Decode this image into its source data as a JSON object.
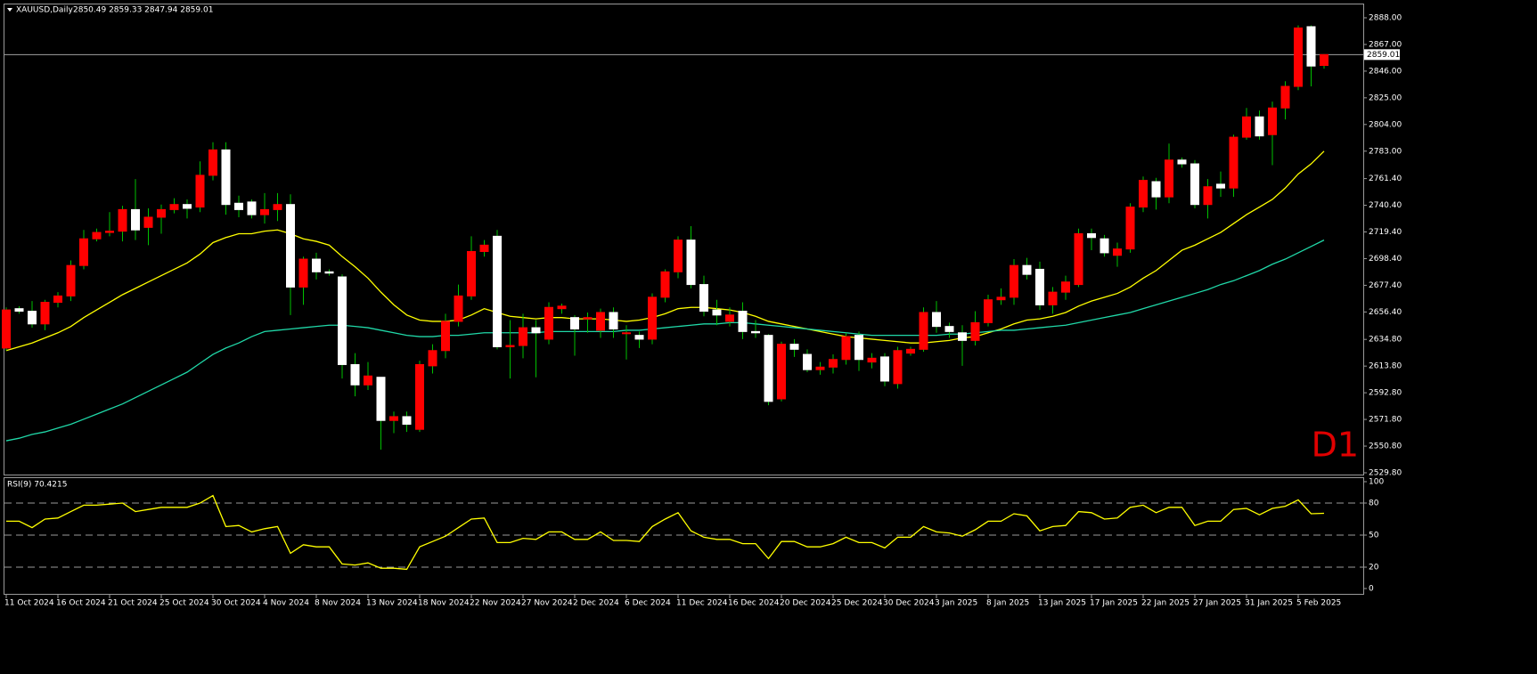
{
  "chart_data": [
    {
      "type": "candlestick",
      "title": "XAUUSD,Daily",
      "subtitle": "2850.49 2859.33 2847.94 2859.01",
      "watermark": "D1",
      "categories": [
        "11 Oct 2024",
        null,
        null,
        null,
        "16 Oct 2024",
        null,
        null,
        null,
        "21 Oct 2024",
        null,
        null,
        null,
        "25 Oct 2024",
        null,
        null,
        null,
        "30 Oct 2024",
        null,
        null,
        null,
        "4 Nov 2024",
        null,
        null,
        null,
        "8 Nov 2024",
        null,
        null,
        null,
        "13 Nov 2024",
        null,
        null,
        null,
        "18 Nov 2024",
        null,
        null,
        null,
        "22 Nov 2024",
        null,
        null,
        null,
        "27 Nov 2024",
        null,
        null,
        null,
        "2 Dec 2024",
        null,
        null,
        null,
        "6 Dec 2024",
        null,
        null,
        null,
        "11 Dec 2024",
        null,
        null,
        null,
        "16 Dec 2024",
        null,
        null,
        null,
        "20 Dec 2024",
        null,
        null,
        null,
        "25 Dec 2024",
        null,
        null,
        null,
        "30 Dec 2024",
        null,
        null,
        null,
        "3 Jan 2025",
        null,
        null,
        null,
        "8 Jan 2025",
        null,
        null,
        null,
        "13 Jan 2025",
        null,
        null,
        null,
        "17 Jan 2025",
        null,
        null,
        null,
        "22 Jan 2025",
        null,
        null,
        null,
        "27 Jan 2025",
        null,
        null,
        null,
        "31 Jan 2025",
        null,
        null,
        null,
        "5 Feb 2025",
        null,
        null
      ],
      "open": [
        2628,
        2659,
        2657,
        2647,
        2664,
        2669,
        2693,
        2714,
        2719,
        2720,
        2737,
        2723,
        2731,
        2737,
        2741,
        2739,
        2764,
        2784,
        2742,
        2743,
        2733,
        2737,
        2741,
        2676,
        2698,
        2688,
        2684,
        2615,
        2599,
        2605,
        2571,
        2574,
        2564,
        2614,
        2626,
        2649,
        2669,
        2704,
        2716,
        2629,
        2630,
        2644,
        2635,
        2659,
        2652,
        2651,
        2642,
        2656,
        2640,
        2638,
        2635,
        2668,
        2688,
        2713,
        2678,
        2658,
        2649,
        2657,
        2641,
        2638,
        2588,
        2631,
        2623,
        2611,
        2613,
        2619,
        2638,
        2617,
        2621,
        2600,
        2624,
        2627,
        2656,
        2645,
        2640,
        2634,
        2648,
        2666,
        2668,
        2693,
        2690,
        2662,
        2672,
        2678,
        2718,
        2714,
        2701,
        2706,
        2739,
        2759,
        2747,
        2776,
        2773,
        2741,
        2757,
        2754,
        2794,
        2810,
        2796,
        2817,
        2834,
        2881,
        2850.49
      ],
      "high": [
        2660,
        2661,
        2665,
        2666,
        2672,
        2697,
        2721,
        2722,
        2735,
        2740,
        2761,
        2738,
        2741,
        2746,
        2745,
        2775,
        2790,
        2790,
        2748,
        2745,
        2750,
        2750,
        2749,
        2700,
        2703,
        2690,
        2686,
        2624,
        2617,
        2605,
        2578,
        2578,
        2618,
        2631,
        2655,
        2678,
        2716,
        2713,
        2721,
        2650,
        2655,
        2650,
        2664,
        2663,
        2654,
        2656,
        2659,
        2660,
        2646,
        2641,
        2671,
        2690,
        2716,
        2724,
        2685,
        2666,
        2660,
        2664,
        2650,
        2639,
        2633,
        2635,
        2627,
        2617,
        2623,
        2640,
        2641,
        2624,
        2624,
        2629,
        2629,
        2660,
        2665,
        2648,
        2646,
        2657,
        2670,
        2675,
        2698,
        2699,
        2696,
        2676,
        2685,
        2722,
        2722,
        2717,
        2711,
        2742,
        2763,
        2762,
        2789,
        2778,
        2776,
        2761,
        2767,
        2796,
        2817,
        2815,
        2822,
        2838,
        2882,
        2882,
        2859.33
      ],
      "low": [
        2626,
        2655,
        2644,
        2642,
        2660,
        2665,
        2690,
        2712,
        2716,
        2712,
        2713,
        2709,
        2718,
        2734,
        2730,
        2735,
        2760,
        2733,
        2731,
        2730,
        2726,
        2728,
        2654,
        2662,
        2682,
        2685,
        2604,
        2590,
        2595,
        2548,
        2561,
        2562,
        2562,
        2608,
        2620,
        2645,
        2666,
        2700,
        2627,
        2604,
        2620,
        2605,
        2631,
        2655,
        2622,
        2640,
        2636,
        2636,
        2619,
        2628,
        2631,
        2664,
        2683,
        2675,
        2653,
        2646,
        2645,
        2635,
        2636,
        2583,
        2586,
        2621,
        2609,
        2607,
        2608,
        2615,
        2610,
        2612,
        2598,
        2596,
        2622,
        2625,
        2640,
        2636,
        2614,
        2630,
        2645,
        2662,
        2662,
        2682,
        2658,
        2655,
        2666,
        2676,
        2705,
        2700,
        2692,
        2703,
        2735,
        2737,
        2742,
        2770,
        2738,
        2730,
        2747,
        2747,
        2792,
        2792,
        2772,
        2808,
        2831,
        2834,
        2847.94
      ],
      "close": [
        2658,
        2657,
        2647,
        2664,
        2669,
        2693,
        2714,
        2719,
        2720,
        2737,
        2721,
        2731,
        2737,
        2741,
        2738,
        2764,
        2784,
        2741,
        2737,
        2733,
        2737,
        2741,
        2676,
        2698,
        2688,
        2687,
        2615,
        2599,
        2606,
        2571,
        2574,
        2568,
        2615,
        2626,
        2649,
        2669,
        2704,
        2709,
        2629,
        2630,
        2644,
        2640,
        2660,
        2661,
        2643,
        2652,
        2656,
        2643,
        2640,
        2635,
        2668,
        2688,
        2713,
        2678,
        2657,
        2654,
        2654,
        2641,
        2640,
        2586,
        2631,
        2627,
        2611,
        2613,
        2619,
        2637,
        2619,
        2620,
        2602,
        2626,
        2627,
        2656,
        2645,
        2641,
        2634,
        2648,
        2666,
        2668,
        2693,
        2686,
        2662,
        2672,
        2680,
        2718,
        2715,
        2703,
        2706,
        2739,
        2760,
        2747,
        2776,
        2773,
        2741,
        2755,
        2754,
        2794,
        2810,
        2795,
        2817,
        2834,
        2880,
        2850,
        2859.01
      ],
      "up_color": "#ff0000",
      "down_color": "#ffffff",
      "wick_color": "#00c000",
      "series": [
        {
          "color": "#ffff00",
          "values": [
            2626,
            2629,
            2632,
            2636,
            2640,
            2645,
            2652,
            2658,
            2664,
            2670,
            2675,
            2680,
            2685,
            2690,
            2695,
            2702,
            2711,
            2715,
            2718,
            2718,
            2720,
            2721,
            2718,
            2714,
            2712,
            2709,
            2700,
            2692,
            2683,
            2672,
            2662,
            2654,
            2650,
            2649,
            2649,
            2650,
            2654,
            2659,
            2656,
            2653,
            2652,
            2651,
            2652,
            2652,
            2651,
            2651,
            2651,
            2650,
            2649,
            2650,
            2652,
            2655,
            2659,
            2660,
            2660,
            2659,
            2658,
            2656,
            2653,
            2649,
            2647,
            2645,
            2643,
            2641,
            2639,
            2637,
            2636,
            2635,
            2634,
            2633,
            2632,
            2632,
            2633,
            2634,
            2636,
            2637,
            2640,
            2643,
            2647,
            2650,
            2651,
            2653,
            2656,
            2661,
            2665,
            2668,
            2671,
            2676,
            2683,
            2689,
            2697,
            2705,
            2709,
            2714,
            2719,
            2726,
            2733,
            2739,
            2745,
            2754,
            2765,
            2773,
            2783
          ]
        },
        {
          "color": "#20d8a8",
          "values": [
            2555,
            2557,
            2560,
            2562,
            2565,
            2568,
            2572,
            2576,
            2580,
            2584,
            2589,
            2594,
            2599,
            2604,
            2609,
            2616,
            2623,
            2628,
            2632,
            2637,
            2641,
            2642,
            2643,
            2644,
            2645,
            2646,
            2646,
            2645,
            2644,
            2642,
            2640,
            2638,
            2637,
            2637,
            2638,
            2638,
            2639,
            2640,
            2640,
            2640,
            2640,
            2640,
            2641,
            2641,
            2641,
            2641,
            2641,
            2641,
            2642,
            2642,
            2643,
            2644,
            2645,
            2646,
            2647,
            2647,
            2648,
            2648,
            2647,
            2646,
            2645,
            2644,
            2643,
            2642,
            2641,
            2640,
            2639,
            2638,
            2638,
            2638,
            2638,
            2638,
            2638,
            2639,
            2639,
            2640,
            2641,
            2642,
            2642,
            2643,
            2644,
            2645,
            2646,
            2648,
            2650,
            2652,
            2654,
            2656,
            2659,
            2662,
            2665,
            2668,
            2671,
            2674,
            2678,
            2681,
            2685,
            2689,
            2694,
            2698,
            2703,
            2708,
            2713
          ]
        }
      ],
      "current_price": {
        "value": 2859.01,
        "label": "2859.01"
      },
      "ylim": [
        2528.4,
        2898.5
      ],
      "yticks": [
        {
          "value": 2888,
          "label": "2888.00"
        },
        {
          "value": 2867,
          "label": "2867.00"
        },
        {
          "value": 2846,
          "label": "2846.00"
        },
        {
          "value": 2825,
          "label": "2825.00"
        },
        {
          "value": 2804,
          "label": "2804.00"
        },
        {
          "value": 2783,
          "label": "2783.00"
        },
        {
          "value": 2761.4,
          "label": "2761.40"
        },
        {
          "value": 2740.4,
          "label": "2740.40"
        },
        {
          "value": 2719.4,
          "label": "2719.40"
        },
        {
          "value": 2698.4,
          "label": "2698.40"
        },
        {
          "value": 2677.4,
          "label": "2677.40"
        },
        {
          "value": 2656.4,
          "label": "2656.40"
        },
        {
          "value": 2634.8,
          "label": "2634.80"
        },
        {
          "value": 2613.8,
          "label": "2613.80"
        },
        {
          "value": 2592.8,
          "label": "2592.80"
        },
        {
          "value": 2571.8,
          "label": "2571.80"
        },
        {
          "value": 2550.8,
          "label": "2550.80"
        },
        {
          "value": 2529.8,
          "label": "2529.80"
        }
      ]
    },
    {
      "type": "line",
      "title": "RSI(9) 70.4215",
      "color": "#ffff00",
      "values": [
        63,
        63,
        57,
        65,
        66,
        72,
        78,
        78,
        79,
        80,
        72,
        74,
        76,
        76,
        76,
        80,
        87,
        58,
        59,
        53,
        56,
        58,
        33,
        41,
        39,
        39,
        23,
        22,
        24,
        19,
        19,
        18,
        39,
        44,
        49,
        57,
        65,
        66,
        43,
        43,
        47,
        46,
        53,
        53,
        46,
        46,
        53,
        45,
        45,
        44,
        58,
        65,
        71,
        54,
        48,
        46,
        46,
        42,
        42,
        28,
        44,
        44,
        39,
        39,
        42,
        48,
        43,
        43,
        38,
        48,
        48,
        58,
        53,
        52,
        49,
        55,
        63,
        63,
        70,
        68,
        54,
        58,
        59,
        72,
        71,
        65,
        66,
        76,
        78,
        71,
        76,
        76,
        59,
        63,
        63,
        74,
        75,
        69,
        75,
        77,
        83,
        70,
        70.4215
      ],
      "ylim": [
        0,
        100
      ],
      "yticks": [
        0,
        20,
        50,
        80,
        100
      ]
    }
  ]
}
